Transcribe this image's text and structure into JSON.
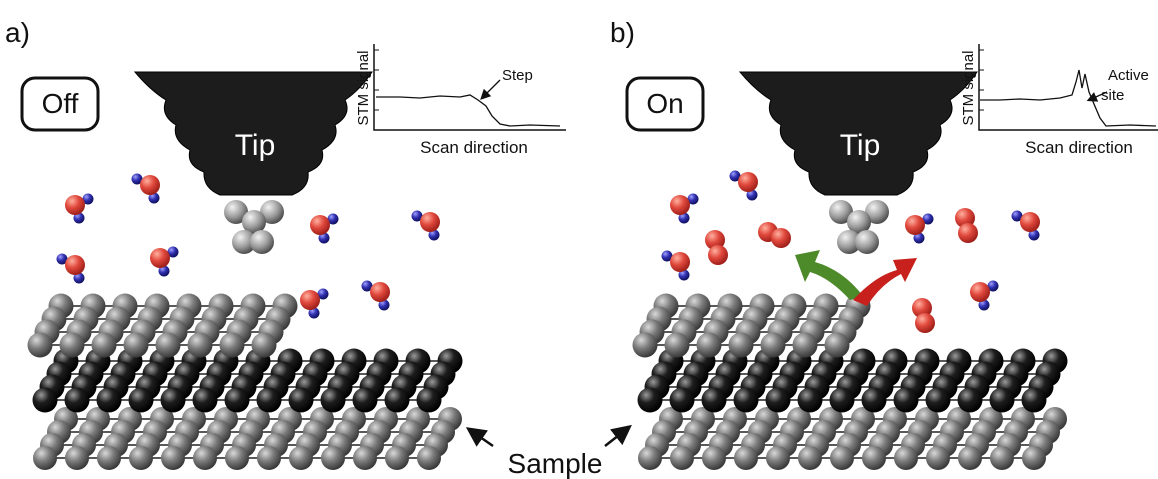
{
  "panels": [
    {
      "label": "a)",
      "state": "Off",
      "tip": "Tip",
      "inset": {
        "ylabel": "STM signal",
        "xlabel": "Scan direction",
        "annotation": [
          "Step"
        ]
      }
    },
    {
      "label": "b)",
      "state": "On",
      "tip": "Tip",
      "inset": {
        "ylabel": "STM signal",
        "xlabel": "Scan direction",
        "annotation": [
          "Active",
          "site"
        ]
      }
    }
  ],
  "sample_label": "Sample"
}
